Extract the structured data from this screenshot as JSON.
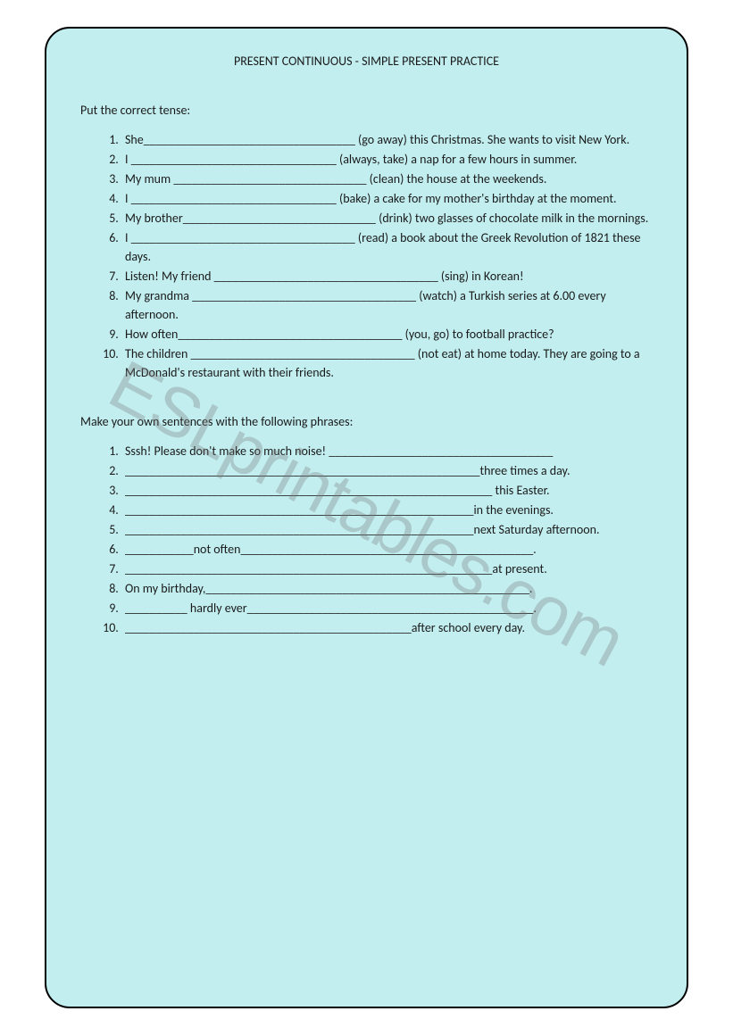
{
  "title": "PRESENT CONTINUOUS - SIMPLE PRESENT PRACTICE",
  "instruction1": "Put the correct tense:",
  "exercise1": [
    "She__________________________________ (go away) this Christmas. She wants to visit New York.",
    "I _________________________________ (always, take) a nap for a few hours in summer.",
    "My mum _______________________________ (clean) the house at the weekends.",
    "I _________________________________ (bake) a cake for my mother's birthday at the moment.",
    "My brother_______________________________ (drink) two glasses of chocolate milk in the mornings.",
    "I ____________________________________ (read) a book about the Greek Revolution of 1821 these days.",
    "Listen! My friend ____________________________________ (sing) in Korean!",
    "My grandma ____________________________________ (watch) a Turkish series at 6.00 every afternoon.",
    "How often____________________________________ (you, go) to football practice?",
    "The children ____________________________________ (not eat) at home today. They are going to a McDonald's restaurant with their friends."
  ],
  "instruction2": "Make your own sentences with the following phrases:",
  "exercise2": [
    " Sssh! Please don't make so much noise! ____________________________________",
    "_________________________________________________________three times a day.",
    "___________________________________________________________ this Easter.",
    "________________________________________________________in the evenings.",
    "________________________________________________________next Saturday afternoon.",
    "___________not often_______________________________________________.",
    "___________________________________________________________at present.",
    "On my birthday,____________________________________________________.",
    "__________ hardly ever______________________________________________.",
    "______________________________________________after school every day."
  ],
  "watermark": "ESLprintables.com",
  "colors": {
    "page_bg": "#c2eef0",
    "border": "#000000",
    "text": "#1a1a1a",
    "watermark": "rgba(120,120,120,0.32)"
  },
  "fonts": {
    "body_size": 14,
    "watermark_size": 78
  }
}
